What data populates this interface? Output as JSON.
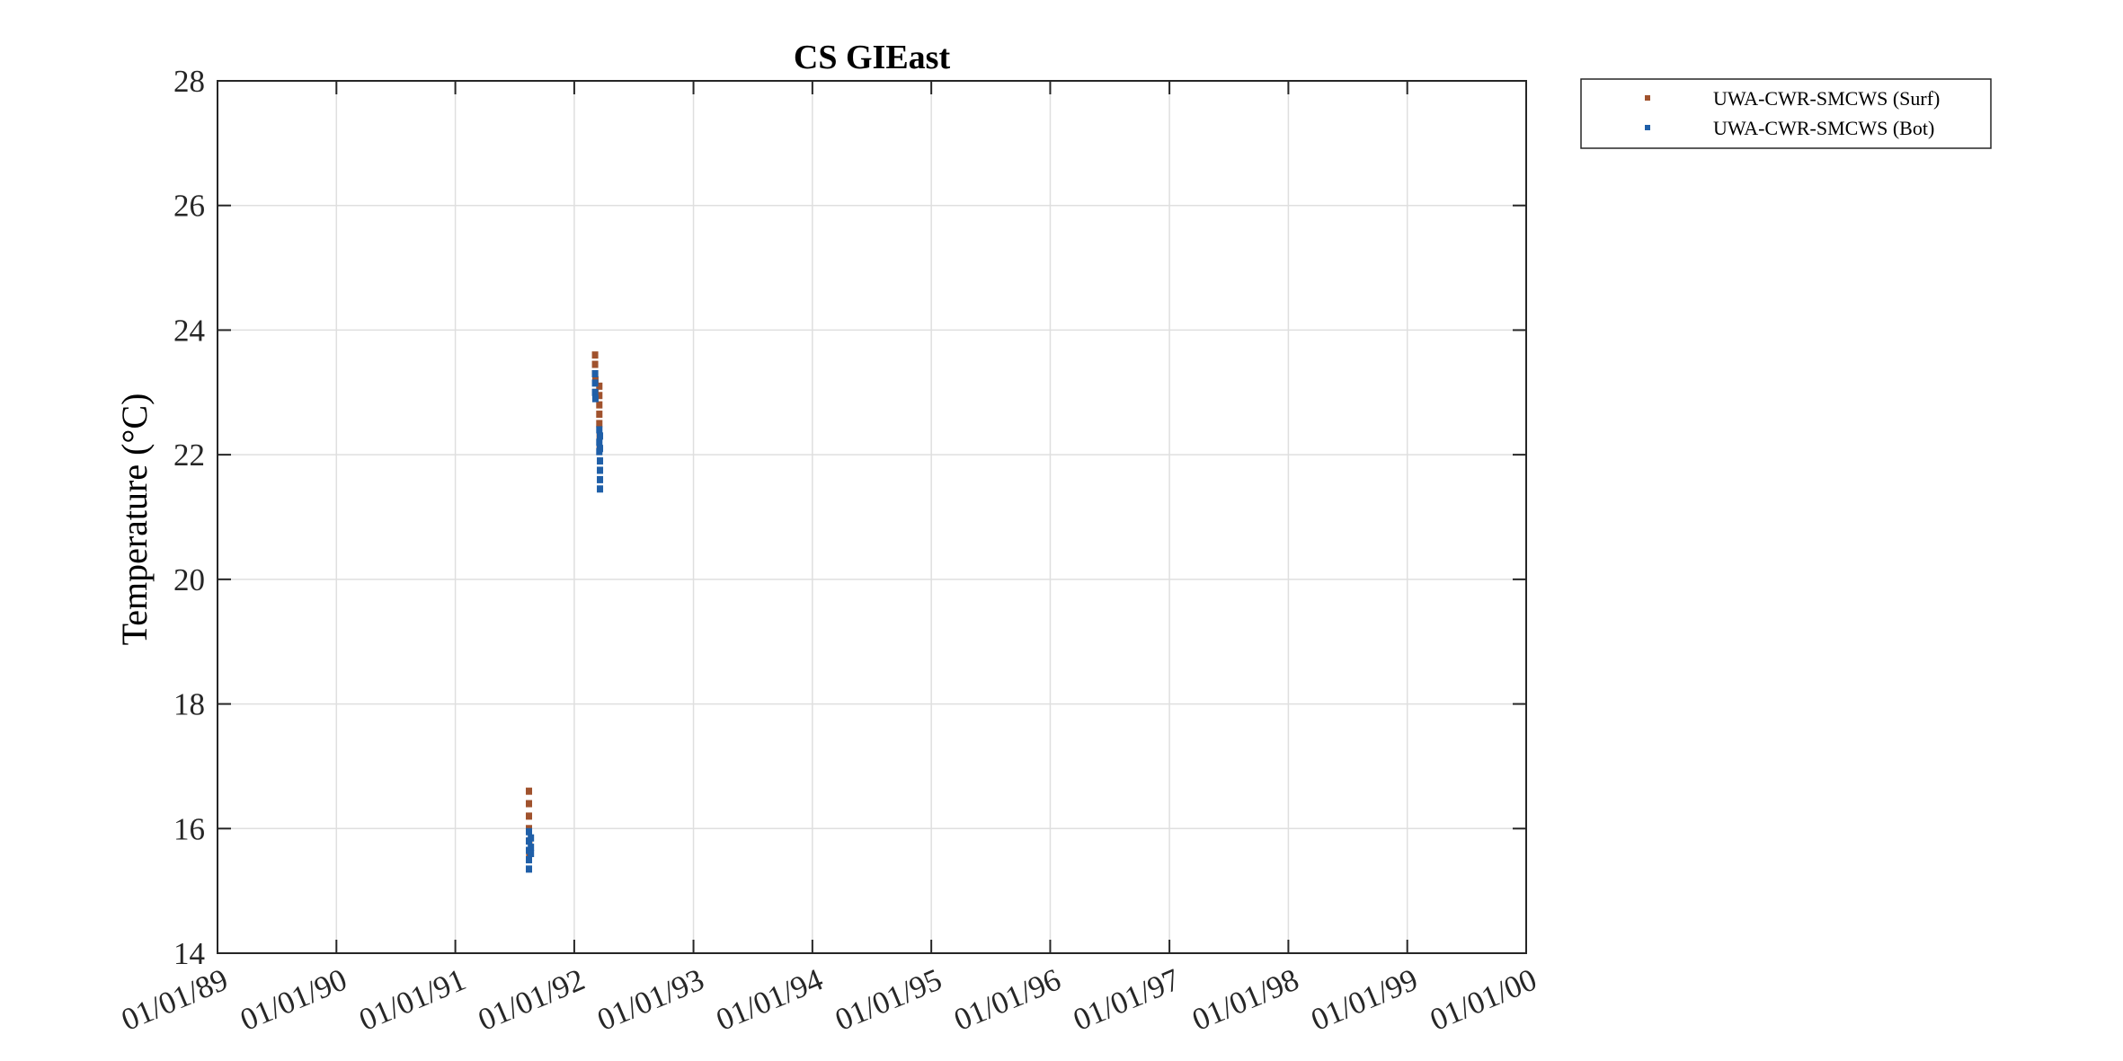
{
  "chart_data": {
    "type": "scatter",
    "title": "CS GIEast",
    "xlabel": "",
    "ylabel": "Temperature (°C)",
    "x_axis_type": "date",
    "xlim": [
      "1989-01-01",
      "2000-01-01"
    ],
    "ylim": [
      14,
      28
    ],
    "xticks": [
      "1989-01-01",
      "1990-01-01",
      "1991-01-01",
      "1992-01-01",
      "1993-01-01",
      "1994-01-01",
      "1995-01-01",
      "1996-01-01",
      "1997-01-01",
      "1998-01-01",
      "1999-01-01",
      "2000-01-01"
    ],
    "xtick_labels": [
      "01/01/89",
      "01/01/90",
      "01/01/91",
      "01/01/92",
      "01/01/93",
      "01/01/94",
      "01/01/95",
      "01/01/96",
      "01/01/97",
      "01/01/98",
      "01/01/99",
      "01/01/00"
    ],
    "yticks": [
      14,
      16,
      18,
      20,
      22,
      24,
      26,
      28
    ],
    "grid": true,
    "legend_position": "outside-top-right",
    "series": [
      {
        "name": "UWA-CWR-SMCWS (Surf)",
        "color": "#a0522d",
        "points": [
          {
            "x": "1991-08-15",
            "y": 16.6
          },
          {
            "x": "1991-08-15",
            "y": 16.4
          },
          {
            "x": "1991-08-15",
            "y": 16.2
          },
          {
            "x": "1991-08-15",
            "y": 16.0
          },
          {
            "x": "1991-08-16",
            "y": 15.8
          },
          {
            "x": "1991-08-16",
            "y": 15.6
          },
          {
            "x": "1992-03-05",
            "y": 23.6
          },
          {
            "x": "1992-03-05",
            "y": 23.45
          },
          {
            "x": "1992-03-05",
            "y": 23.3
          },
          {
            "x": "1992-03-06",
            "y": 23.2
          },
          {
            "x": "1992-03-06",
            "y": 23.0
          },
          {
            "x": "1992-03-18",
            "y": 23.1
          },
          {
            "x": "1992-03-18",
            "y": 22.95
          },
          {
            "x": "1992-03-18",
            "y": 22.8
          },
          {
            "x": "1992-03-18",
            "y": 22.65
          },
          {
            "x": "1992-03-18",
            "y": 22.5
          },
          {
            "x": "1992-03-19",
            "y": 22.3
          },
          {
            "x": "1992-03-19",
            "y": 22.1
          }
        ]
      },
      {
        "name": "UWA-CWR-SMCWS (Bot)",
        "color": "#1f5fa8",
        "points": [
          {
            "x": "1991-08-15",
            "y": 15.95
          },
          {
            "x": "1991-08-15",
            "y": 15.8
          },
          {
            "x": "1991-08-15",
            "y": 15.65
          },
          {
            "x": "1991-08-15",
            "y": 15.5
          },
          {
            "x": "1991-08-15",
            "y": 15.35
          },
          {
            "x": "1991-08-21",
            "y": 15.85
          },
          {
            "x": "1991-08-21",
            "y": 15.7
          },
          {
            "x": "1991-08-21",
            "y": 15.6
          },
          {
            "x": "1992-03-05",
            "y": 23.3
          },
          {
            "x": "1992-03-05",
            "y": 23.15
          },
          {
            "x": "1992-03-05",
            "y": 23.0
          },
          {
            "x": "1992-03-06",
            "y": 22.9
          },
          {
            "x": "1992-03-18",
            "y": 22.4
          },
          {
            "x": "1992-03-18",
            "y": 22.2
          },
          {
            "x": "1992-03-18",
            "y": 22.05
          },
          {
            "x": "1992-03-20",
            "y": 22.3
          },
          {
            "x": "1992-03-20",
            "y": 22.1
          },
          {
            "x": "1992-03-20",
            "y": 21.9
          },
          {
            "x": "1992-03-20",
            "y": 21.75
          },
          {
            "x": "1992-03-20",
            "y": 21.6
          },
          {
            "x": "1992-03-20",
            "y": 21.45
          }
        ]
      }
    ]
  }
}
